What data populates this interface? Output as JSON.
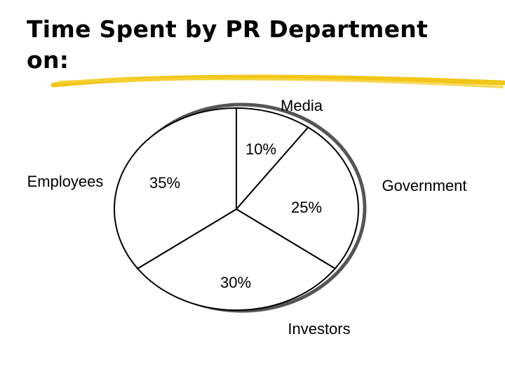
{
  "slide": {
    "title": "Time Spent by PR Department on:",
    "accent_color": "#f2c618"
  },
  "chart_data": {
    "type": "pie",
    "title": "",
    "categories": [
      "Media",
      "Government",
      "Investors",
      "Employees"
    ],
    "values": [
      10,
      25,
      30,
      35
    ],
    "value_labels": [
      "10%",
      "25%",
      "30%",
      "35%"
    ],
    "legend": "none",
    "slice_fill": "#ffffff",
    "slice_stroke": "#000000"
  }
}
